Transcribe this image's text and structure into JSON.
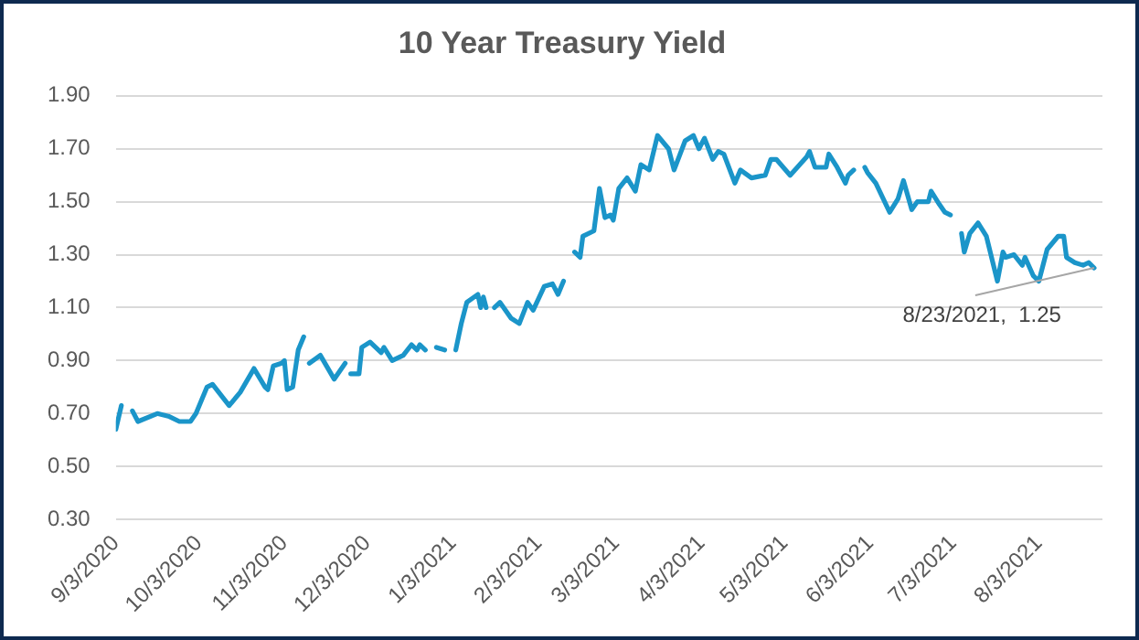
{
  "chart_data": {
    "type": "line",
    "title": "10 Year Treasury Yield",
    "x": [
      "2020-09-03",
      "2020-09-05",
      "2020-09-07",
      "2020-09-09",
      "2020-09-11",
      "2020-09-18",
      "2020-09-22",
      "2020-09-26",
      "2020-09-30",
      "2020-10-02",
      "2020-10-06",
      "2020-10-08",
      "2020-10-14",
      "2020-10-18",
      "2020-10-23",
      "2020-10-27",
      "2020-10-28",
      "2020-10-30",
      "2020-11-02",
      "2020-11-03",
      "2020-11-04",
      "2020-11-06",
      "2020-11-08",
      "2020-11-10",
      "2020-11-11",
      "2020-11-12",
      "2020-11-16",
      "2020-11-21",
      "2020-11-25",
      "2020-11-26",
      "2020-11-27",
      "2020-11-30",
      "2020-12-01",
      "2020-12-04",
      "2020-12-08",
      "2020-12-09",
      "2020-12-12",
      "2020-12-16",
      "2020-12-19",
      "2020-12-21",
      "2020-12-22",
      "2020-12-24",
      "2020-12-26",
      "2020-12-28",
      "2020-12-31",
      "2021-01-02",
      "2021-01-04",
      "2021-01-06",
      "2021-01-08",
      "2021-01-12",
      "2021-01-13",
      "2021-01-14",
      "2021-01-15",
      "2021-01-16",
      "2021-01-18",
      "2021-01-20",
      "2021-01-24",
      "2021-01-27",
      "2021-01-30",
      "2021-02-01",
      "2021-02-05",
      "2021-02-08",
      "2021-02-10",
      "2021-02-12",
      "2021-02-14",
      "2021-02-16",
      "2021-02-18",
      "2021-02-19",
      "2021-02-23",
      "2021-02-25",
      "2021-02-27",
      "2021-03-01",
      "2021-03-02",
      "2021-03-04",
      "2021-03-07",
      "2021-03-10",
      "2021-03-12",
      "2021-03-15",
      "2021-03-18",
      "2021-03-22",
      "2021-03-24",
      "2021-03-28",
      "2021-03-31",
      "2021-04-02",
      "2021-04-04",
      "2021-04-07",
      "2021-04-09",
      "2021-04-11",
      "2021-04-15",
      "2021-04-17",
      "2021-04-21",
      "2021-04-26",
      "2021-04-28",
      "2021-04-30",
      "2021-05-05",
      "2021-05-11",
      "2021-05-12",
      "2021-05-14",
      "2021-05-18",
      "2021-05-19",
      "2021-05-22",
      "2021-05-25",
      "2021-05-26",
      "2021-05-28",
      "2021-05-30",
      "2021-06-01",
      "2021-06-02",
      "2021-06-05",
      "2021-06-10",
      "2021-06-13",
      "2021-06-15",
      "2021-06-18",
      "2021-06-20",
      "2021-06-24",
      "2021-06-25",
      "2021-06-28",
      "2021-06-30",
      "2021-07-02",
      "2021-07-04",
      "2021-07-06",
      "2021-07-07",
      "2021-07-09",
      "2021-07-12",
      "2021-07-15",
      "2021-07-19",
      "2021-07-21",
      "2021-07-22",
      "2021-07-25",
      "2021-07-28",
      "2021-07-29",
      "2021-08-01",
      "2021-08-03",
      "2021-08-06",
      "2021-08-10",
      "2021-08-12",
      "2021-08-13",
      "2021-08-16",
      "2021-08-19",
      "2021-08-21",
      "2021-08-23"
    ],
    "series": [
      {
        "color": "#1b95c9",
        "values": [
          0.64,
          0.73,
          null,
          0.71,
          0.67,
          0.7,
          0.69,
          0.67,
          0.67,
          0.7,
          0.8,
          0.81,
          0.73,
          0.78,
          0.87,
          0.8,
          0.79,
          0.88,
          0.89,
          0.9,
          0.79,
          0.8,
          0.94,
          0.99,
          null,
          0.89,
          0.92,
          0.83,
          0.89,
          null,
          0.85,
          0.85,
          0.95,
          0.97,
          0.93,
          0.95,
          0.9,
          0.92,
          0.96,
          0.94,
          0.96,
          0.94,
          null,
          0.95,
          0.94,
          null,
          0.94,
          1.04,
          1.12,
          1.15,
          1.1,
          1.14,
          1.1,
          null,
          1.1,
          1.12,
          1.06,
          1.04,
          1.12,
          1.09,
          1.18,
          1.19,
          1.15,
          1.2,
          null,
          1.31,
          1.29,
          1.37,
          1.39,
          1.55,
          1.44,
          1.45,
          1.43,
          1.55,
          1.59,
          1.54,
          1.64,
          1.62,
          1.75,
          1.7,
          1.62,
          1.73,
          1.75,
          1.7,
          1.74,
          1.66,
          1.69,
          1.68,
          1.57,
          1.62,
          1.59,
          1.6,
          1.66,
          1.66,
          1.6,
          1.67,
          1.69,
          1.63,
          1.63,
          1.68,
          1.63,
          1.57,
          1.6,
          1.62,
          null,
          1.63,
          1.61,
          1.57,
          1.46,
          1.51,
          1.58,
          1.47,
          1.5,
          1.5,
          1.54,
          1.49,
          1.46,
          1.45,
          null,
          1.38,
          1.31,
          1.38,
          1.42,
          1.37,
          1.2,
          1.31,
          1.29,
          1.3,
          1.26,
          1.29,
          1.22,
          1.2,
          1.32,
          1.37,
          1.37,
          1.29,
          1.27,
          1.26,
          1.27,
          1.25
        ]
      }
    ],
    "xlim": [
      "2020-09-03",
      "2021-08-26"
    ],
    "xticks": [
      {
        "value": "2020-09-03",
        "label": "9/3/2020"
      },
      {
        "value": "2020-10-03",
        "label": "10/3/2020"
      },
      {
        "value": "2020-11-03",
        "label": "11/3/2020"
      },
      {
        "value": "2020-12-03",
        "label": "12/3/2020"
      },
      {
        "value": "2021-01-03",
        "label": "1/3/2021"
      },
      {
        "value": "2021-02-03",
        "label": "2/3/2021"
      },
      {
        "value": "2021-03-03",
        "label": "3/3/2021"
      },
      {
        "value": "2021-04-03",
        "label": "4/3/2021"
      },
      {
        "value": "2021-05-03",
        "label": "5/3/2021"
      },
      {
        "value": "2021-06-03",
        "label": "6/3/2021"
      },
      {
        "value": "2021-07-03",
        "label": "7/3/2021"
      },
      {
        "value": "2021-08-03",
        "label": "8/3/2021"
      }
    ],
    "ylim": [
      0.3,
      1.9
    ],
    "yticks": [
      {
        "value": 0.3,
        "label": "0.30"
      },
      {
        "value": 0.5,
        "label": "0.50"
      },
      {
        "value": 0.7,
        "label": "0.70"
      },
      {
        "value": 0.9,
        "label": "0.90"
      },
      {
        "value": 1.1,
        "label": "1.10"
      },
      {
        "value": 1.3,
        "label": "1.30"
      },
      {
        "value": 1.5,
        "label": "1.50"
      },
      {
        "value": 1.7,
        "label": "1.70"
      },
      {
        "value": 1.9,
        "label": "1.90"
      }
    ],
    "grid": "y",
    "legend": false,
    "marker": "none",
    "line_style": "solid",
    "annotations": [
      {
        "text": "8/23/2021,  1.25",
        "x": "2021-08-23",
        "y": 1.25
      }
    ]
  }
}
